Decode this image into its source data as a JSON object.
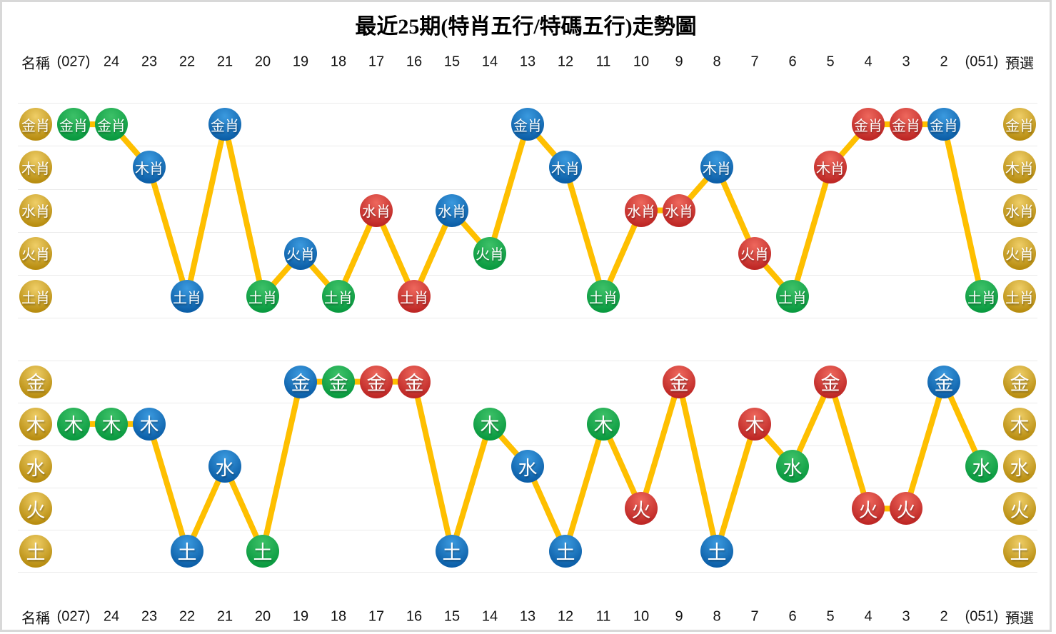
{
  "title": "最近25期(特肖五行/特碼五行)走勢圖",
  "columns": [
    "名稱",
    "(027)",
    "24",
    "23",
    "22",
    "21",
    "20",
    "19",
    "18",
    "17",
    "16",
    "15",
    "14",
    "13",
    "12",
    "11",
    "10",
    "9",
    "8",
    "7",
    "6",
    "5",
    "4",
    "3",
    "2",
    "(051)",
    "預選"
  ],
  "colors": {
    "green_light": "#3DC168",
    "green_dark": "#0A9A40",
    "blue_light": "#3B9ADF",
    "blue_dark": "#0C5FA8",
    "red_light": "#EE685D",
    "red_dark": "#BE2725",
    "gold_light": "#EFCE67",
    "gold_dark": "#B88D10",
    "line": "#FEBF00",
    "grid": "#EBEBEB",
    "border": "#D8D8D8",
    "header_text": "#141414"
  },
  "chart_data": [
    {
      "type": "line",
      "name": "特肖五行",
      "left_axis_label": "名稱",
      "right_axis_label": "預選",
      "rows": [
        "金肖",
        "木肖",
        "水肖",
        "火肖",
        "土肖"
      ],
      "categories": [
        "(027)",
        "24",
        "23",
        "22",
        "21",
        "20",
        "19",
        "18",
        "17",
        "16",
        "15",
        "14",
        "13",
        "12",
        "11",
        "10",
        "9",
        "8",
        "7",
        "6",
        "5",
        "4",
        "3",
        "2",
        "(051)"
      ],
      "points": [
        {
          "period": "(027)",
          "value": "金肖",
          "color": "green"
        },
        {
          "period": "24",
          "value": "金肖",
          "color": "green"
        },
        {
          "period": "23",
          "value": "木肖",
          "color": "blue"
        },
        {
          "period": "22",
          "value": "土肖",
          "color": "blue"
        },
        {
          "period": "21",
          "value": "金肖",
          "color": "blue"
        },
        {
          "period": "20",
          "value": "土肖",
          "color": "green"
        },
        {
          "period": "19",
          "value": "火肖",
          "color": "blue"
        },
        {
          "period": "18",
          "value": "土肖",
          "color": "green"
        },
        {
          "period": "17",
          "value": "水肖",
          "color": "red"
        },
        {
          "period": "16",
          "value": "土肖",
          "color": "red"
        },
        {
          "period": "15",
          "value": "水肖",
          "color": "blue"
        },
        {
          "period": "14",
          "value": "火肖",
          "color": "green"
        },
        {
          "period": "13",
          "value": "金肖",
          "color": "blue"
        },
        {
          "period": "12",
          "value": "木肖",
          "color": "blue"
        },
        {
          "period": "11",
          "value": "土肖",
          "color": "green"
        },
        {
          "period": "10",
          "value": "水肖",
          "color": "red"
        },
        {
          "period": "9",
          "value": "水肖",
          "color": "red"
        },
        {
          "period": "8",
          "value": "木肖",
          "color": "blue"
        },
        {
          "period": "7",
          "value": "火肖",
          "color": "red"
        },
        {
          "period": "6",
          "value": "土肖",
          "color": "green"
        },
        {
          "period": "5",
          "value": "木肖",
          "color": "red"
        },
        {
          "period": "4",
          "value": "金肖",
          "color": "red"
        },
        {
          "period": "3",
          "value": "金肖",
          "color": "red"
        },
        {
          "period": "2",
          "value": "金肖",
          "color": "blue"
        },
        {
          "period": "(051)",
          "value": "土肖",
          "color": "green"
        }
      ]
    },
    {
      "type": "line",
      "name": "特碼五行",
      "left_axis_label": "名稱",
      "right_axis_label": "預選",
      "rows": [
        "金",
        "木",
        "水",
        "火",
        "土"
      ],
      "categories": [
        "(027)",
        "24",
        "23",
        "22",
        "21",
        "20",
        "19",
        "18",
        "17",
        "16",
        "15",
        "14",
        "13",
        "12",
        "11",
        "10",
        "9",
        "8",
        "7",
        "6",
        "5",
        "4",
        "3",
        "2",
        "(051)"
      ],
      "points": [
        {
          "period": "(027)",
          "value": "木",
          "color": "green"
        },
        {
          "period": "24",
          "value": "木",
          "color": "green"
        },
        {
          "period": "23",
          "value": "木",
          "color": "blue"
        },
        {
          "period": "22",
          "value": "土",
          "color": "blue"
        },
        {
          "period": "21",
          "value": "水",
          "color": "blue"
        },
        {
          "period": "20",
          "value": "土",
          "color": "green"
        },
        {
          "period": "19",
          "value": "金",
          "color": "blue"
        },
        {
          "period": "18",
          "value": "金",
          "color": "green"
        },
        {
          "period": "17",
          "value": "金",
          "color": "red"
        },
        {
          "period": "16",
          "value": "金",
          "color": "red"
        },
        {
          "period": "15",
          "value": "土",
          "color": "blue"
        },
        {
          "period": "14",
          "value": "木",
          "color": "green"
        },
        {
          "period": "13",
          "value": "水",
          "color": "blue"
        },
        {
          "period": "12",
          "value": "土",
          "color": "blue"
        },
        {
          "period": "11",
          "value": "木",
          "color": "green"
        },
        {
          "period": "10",
          "value": "火",
          "color": "red"
        },
        {
          "period": "9",
          "value": "金",
          "color": "red"
        },
        {
          "period": "8",
          "value": "土",
          "color": "blue"
        },
        {
          "period": "7",
          "value": "木",
          "color": "red"
        },
        {
          "period": "6",
          "value": "水",
          "color": "green"
        },
        {
          "period": "5",
          "value": "金",
          "color": "red"
        },
        {
          "period": "4",
          "value": "火",
          "color": "red"
        },
        {
          "period": "3",
          "value": "火",
          "color": "red"
        },
        {
          "period": "2",
          "value": "金",
          "color": "blue"
        },
        {
          "period": "(051)",
          "value": "水",
          "color": "green"
        }
      ]
    }
  ]
}
